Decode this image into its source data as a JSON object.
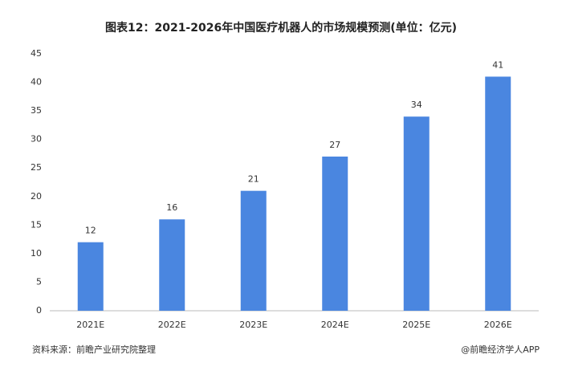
{
  "chart_data": {
    "type": "bar",
    "title": "图表12：2021-2026年中国医疗机器人的市场规模预测(单位：亿元)",
    "categories": [
      "2021E",
      "2022E",
      "2023E",
      "2024E",
      "2025E",
      "2026E"
    ],
    "values": [
      12,
      16,
      21,
      27,
      34,
      41
    ],
    "color": "#4a86e0",
    "ylim": [
      0,
      45
    ],
    "yticks": [
      0,
      5,
      10,
      15,
      20,
      25,
      30,
      35,
      40,
      45
    ],
    "grid": false,
    "source": "资料来源：前瞻产业研究院整理",
    "credit": "@前瞻经济学人APP"
  }
}
